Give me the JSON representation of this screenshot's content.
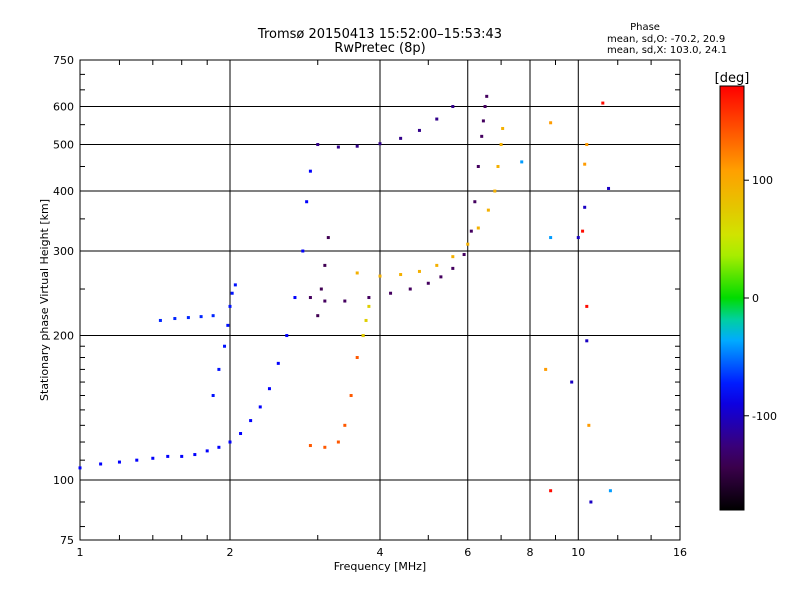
{
  "header": {
    "title_line1": "Tromsø 20150413 15:52:00–15:53:43",
    "title_line2": "RwPretec (8p)",
    "phase_title": "Phase",
    "phase_line1": "mean, sd,O: -70.2, 20.9",
    "phase_line2": "mean, sd,X: 103.0, 24.1"
  },
  "chart_data": {
    "type": "scatter",
    "xlabel": "Frequency [MHz]",
    "ylabel": "Stationary phase Virtual Height [km]",
    "xscale": "log",
    "yscale": "log",
    "xlim": [
      1,
      16
    ],
    "ylim": [
      75,
      750
    ],
    "xticks": [
      1,
      2,
      4,
      6,
      8,
      10,
      16
    ],
    "xtick_labels": [
      "1",
      "2",
      "4",
      "6",
      "8",
      "10",
      "16"
    ],
    "yticks": [
      75,
      100,
      200,
      300,
      400,
      500,
      600,
      750
    ],
    "ytick_labels": [
      "75",
      "100",
      "200",
      "300",
      "400",
      "500",
      "600",
      "750"
    ],
    "grid": true,
    "colorbar": {
      "label": "[deg]",
      "range": [
        -180,
        180
      ],
      "ticks": [
        100,
        0,
        -100
      ],
      "tick_labels": [
        "100",
        "0",
        "-100"
      ]
    },
    "traces": [
      {
        "color_deg": -80,
        "points": [
          [
            1.0,
            106
          ],
          [
            1.1,
            108
          ],
          [
            1.2,
            109
          ],
          [
            1.3,
            110
          ],
          [
            1.4,
            111
          ],
          [
            1.5,
            112
          ],
          [
            1.6,
            112
          ],
          [
            1.7,
            113
          ],
          [
            1.8,
            115
          ],
          [
            1.9,
            117
          ],
          [
            2.0,
            120
          ],
          [
            2.1,
            125
          ],
          [
            2.2,
            133
          ],
          [
            2.3,
            142
          ],
          [
            2.4,
            155
          ],
          [
            2.5,
            175
          ],
          [
            2.6,
            200
          ],
          [
            2.7,
            240
          ],
          [
            2.8,
            300
          ],
          [
            2.85,
            380
          ],
          [
            2.9,
            440
          ]
        ]
      },
      {
        "color_deg": -75,
        "points": [
          [
            1.85,
            150
          ],
          [
            1.9,
            170
          ],
          [
            1.95,
            190
          ],
          [
            1.98,
            210
          ],
          [
            2.0,
            230
          ],
          [
            2.02,
            245
          ],
          [
            2.05,
            255
          ]
        ]
      },
      {
        "color_deg": -70,
        "points": [
          [
            1.45,
            215
          ],
          [
            1.55,
            217
          ],
          [
            1.65,
            218
          ],
          [
            1.75,
            219
          ],
          [
            1.85,
            220
          ]
        ]
      },
      {
        "color_deg": -135,
        "points": [
          [
            2.9,
            240
          ],
          [
            3.1,
            236
          ],
          [
            3.4,
            236
          ],
          [
            3.8,
            240
          ],
          [
            4.2,
            245
          ],
          [
            4.6,
            250
          ],
          [
            5.0,
            257
          ],
          [
            5.3,
            265
          ],
          [
            5.6,
            276
          ],
          [
            5.9,
            295
          ],
          [
            6.1,
            330
          ],
          [
            6.2,
            380
          ],
          [
            6.3,
            450
          ],
          [
            6.4,
            520
          ],
          [
            6.45,
            560
          ],
          [
            6.5,
            600
          ],
          [
            6.55,
            630
          ]
        ]
      },
      {
        "color_deg": -140,
        "points": [
          [
            3.0,
            220
          ],
          [
            3.05,
            250
          ],
          [
            3.1,
            280
          ],
          [
            3.15,
            320
          ]
        ]
      },
      {
        "color_deg": -120,
        "points": [
          [
            3.0,
            500
          ],
          [
            3.3,
            494
          ],
          [
            3.6,
            496
          ],
          [
            4.0,
            502
          ],
          [
            4.4,
            515
          ],
          [
            4.8,
            535
          ],
          [
            5.2,
            565
          ],
          [
            5.6,
            600
          ]
        ]
      },
      {
        "color_deg": 95,
        "points": [
          [
            3.6,
            270
          ],
          [
            4.0,
            266
          ],
          [
            4.4,
            268
          ],
          [
            4.8,
            272
          ],
          [
            5.2,
            280
          ],
          [
            5.6,
            292
          ],
          [
            6.0,
            310
          ],
          [
            6.3,
            335
          ],
          [
            6.6,
            365
          ],
          [
            6.8,
            400
          ],
          [
            6.9,
            450
          ],
          [
            7.0,
            500
          ],
          [
            7.05,
            540
          ]
        ]
      },
      {
        "color_deg": 140,
        "points": [
          [
            2.9,
            118
          ],
          [
            3.1,
            117
          ],
          [
            3.3,
            120
          ],
          [
            3.4,
            130
          ],
          [
            3.5,
            150
          ],
          [
            3.6,
            180
          ],
          [
            3.7,
            200
          ]
        ]
      },
      {
        "color_deg": 70,
        "points": [
          [
            3.7,
            200
          ],
          [
            3.75,
            215
          ],
          [
            3.8,
            230
          ]
        ]
      },
      {
        "color_deg": 110,
        "points": [
          [
            8.8,
            555
          ],
          [
            10.4,
            500
          ],
          [
            10.3,
            455
          ],
          [
            10.5,
            130
          ],
          [
            8.6,
            170
          ]
        ]
      },
      {
        "color_deg": -100,
        "points": [
          [
            11.5,
            405
          ],
          [
            10.3,
            370
          ],
          [
            10.0,
            320
          ],
          [
            10.4,
            195
          ],
          [
            9.7,
            160
          ],
          [
            10.6,
            90
          ]
        ]
      },
      {
        "color_deg": 175,
        "points": [
          [
            8.8,
            95
          ],
          [
            10.4,
            230
          ],
          [
            10.2,
            330
          ],
          [
            11.2,
            610
          ]
        ]
      },
      {
        "color_deg": -40,
        "points": [
          [
            8.8,
            320
          ],
          [
            7.7,
            460
          ],
          [
            11.6,
            95
          ]
        ]
      }
    ]
  }
}
